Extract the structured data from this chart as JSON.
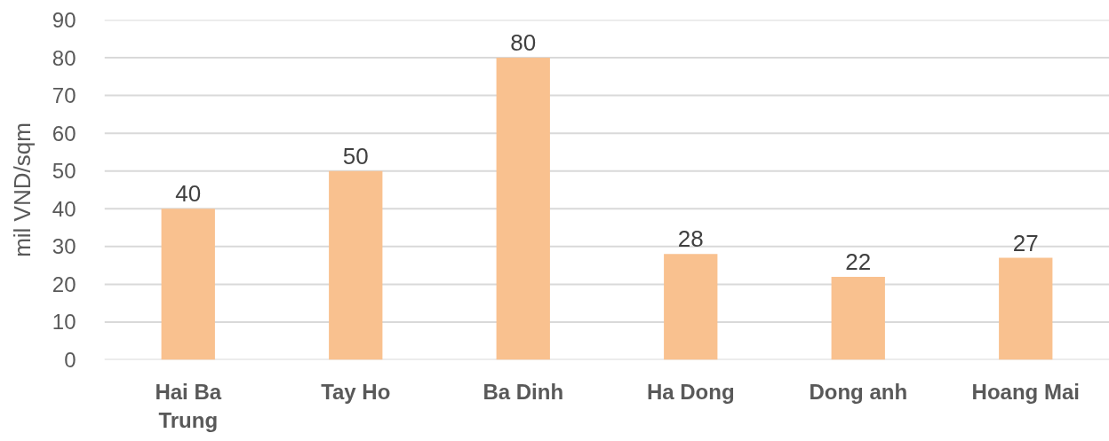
{
  "chart_data": {
    "type": "bar",
    "categories": [
      "Hai Ba Trung",
      "Tay Ho",
      "Ba Dinh",
      "Ha Dong",
      "Dong anh",
      "Hoang Mai"
    ],
    "values": [
      40,
      50,
      80,
      28,
      22,
      27
    ],
    "color": "#f9c18f",
    "ylabel": "mil VND/sqm",
    "ylim": [
      0,
      90
    ],
    "yticks": [
      0,
      10,
      20,
      30,
      40,
      50,
      60,
      70,
      80,
      90
    ],
    "grid": "y",
    "data_labels": true
  }
}
